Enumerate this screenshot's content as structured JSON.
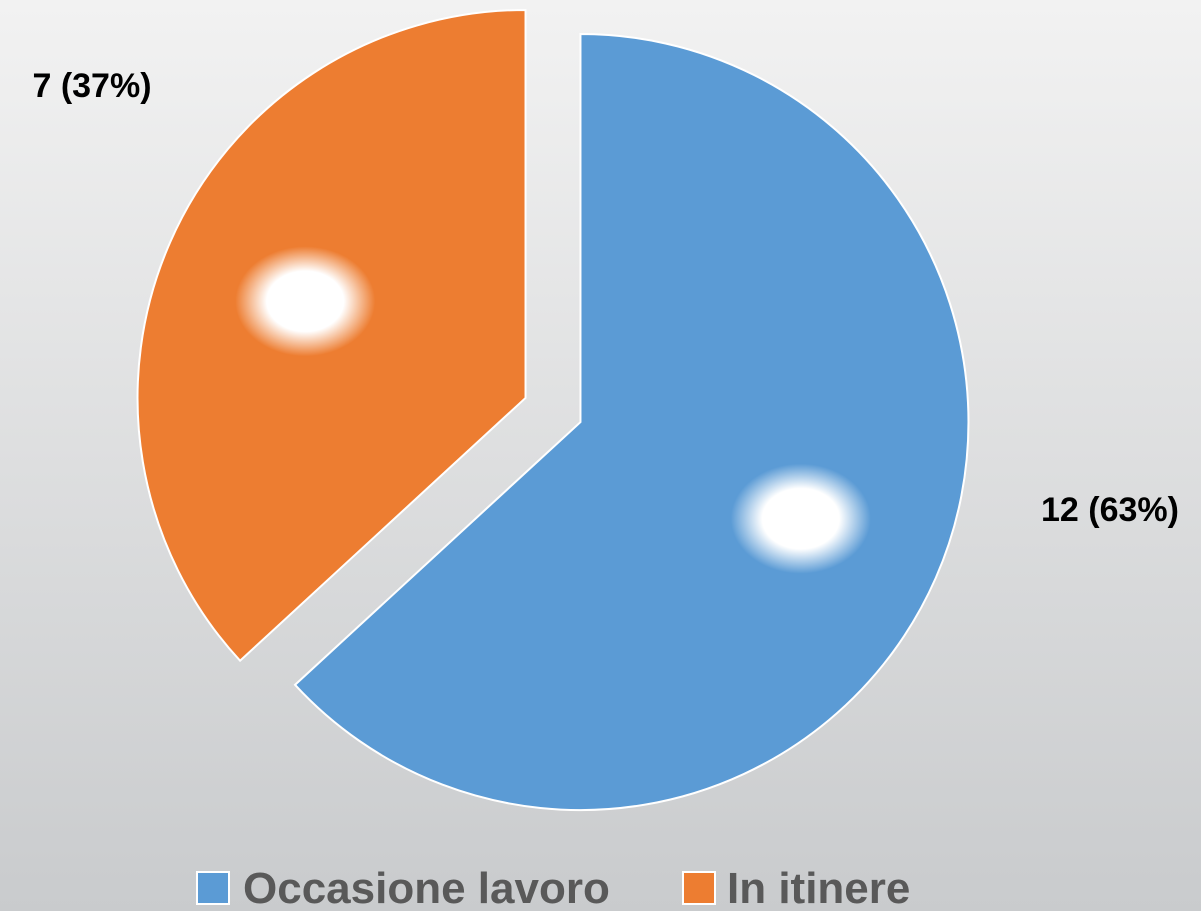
{
  "chart_data": {
    "type": "pie",
    "categories": [
      "Occasione lavoro",
      "In itinere"
    ],
    "values": [
      12,
      7
    ],
    "value_labels": [
      "12 (63%)",
      "7 (37%)"
    ],
    "colors": [
      "#5b9bd5",
      "#ed7d31"
    ],
    "legend": "bottom"
  }
}
